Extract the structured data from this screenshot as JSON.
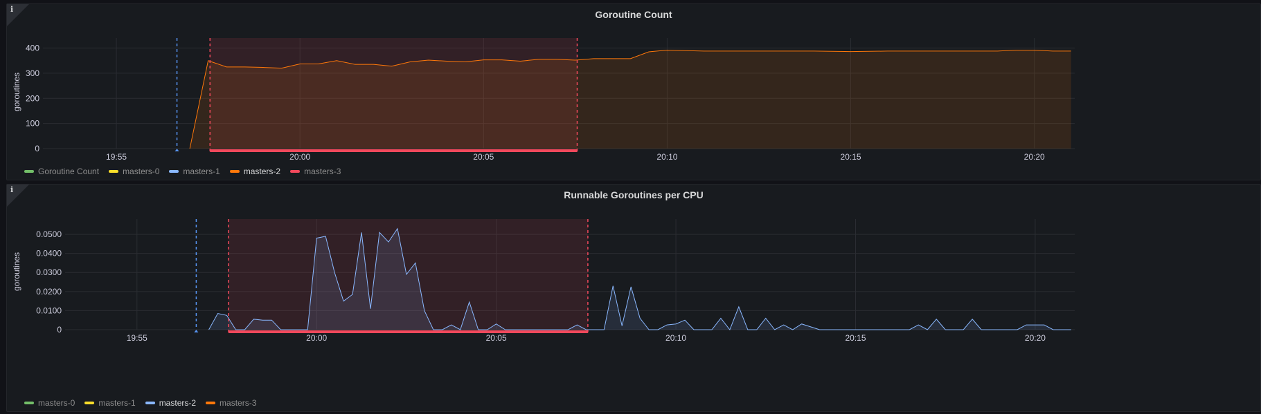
{
  "panels": [
    {
      "title": "Goroutine Count",
      "info_icon": "i",
      "ylabel": "goroutines",
      "legend": [
        {
          "label": "Goroutine Count",
          "color": "#73bf69",
          "active": false
        },
        {
          "label": "masters-0",
          "color": "#fade2a",
          "active": false
        },
        {
          "label": "masters-1",
          "color": "#8ab8ff",
          "active": false
        },
        {
          "label": "masters-2",
          "color": "#ff780a",
          "active": true
        },
        {
          "label": "masters-3",
          "color": "#f2495c",
          "active": false
        }
      ],
      "chart_data": {
        "type": "area",
        "series_color": "#ff780a",
        "x_ticks": [
          "19:55",
          "20:00",
          "20:05",
          "20:10",
          "20:15",
          "20:20"
        ],
        "y_ticks": [
          "0",
          "100",
          "200",
          "300",
          "400"
        ],
        "ylim": [
          0,
          440
        ],
        "xlim_minutes": [
          1193.0,
          1221.1
        ],
        "annotation_deploy_minute": 1196.65,
        "annotation_region_minutes": [
          1197.55,
          1207.55
        ],
        "series": [
          {
            "name": "masters-2",
            "x": [
              1197.0,
              1197.5,
              1198.0,
              1198.5,
              1199.0,
              1199.5,
              1200.0,
              1200.5,
              1201.0,
              1201.5,
              1202.0,
              1202.5,
              1203.0,
              1203.5,
              1204.0,
              1204.5,
              1205.0,
              1205.5,
              1206.0,
              1206.5,
              1207.0,
              1207.5,
              1208.0,
              1208.5,
              1209.0,
              1209.5,
              1210.0,
              1211.0,
              1212.0,
              1213.0,
              1214.0,
              1215.0,
              1216.0,
              1217.0,
              1218.0,
              1219.0,
              1219.5,
              1220.0,
              1220.5,
              1221.0
            ],
            "y": [
              0,
              350,
              325,
              325,
              323,
              320,
              337,
              337,
              350,
              335,
              335,
              328,
              345,
              352,
              348,
              345,
              353,
              353,
              348,
              355,
              355,
              352,
              358,
              358,
              358,
              385,
              392,
              388,
              388,
              388,
              388,
              386,
              388,
              388,
              388,
              388,
              392,
              392,
              388,
              388
            ]
          }
        ]
      }
    },
    {
      "title": "Runnable Goroutines per CPU",
      "info_icon": "i",
      "ylabel": "goroutines",
      "legend": [
        {
          "label": "masters-0",
          "color": "#73bf69",
          "active": false
        },
        {
          "label": "masters-1",
          "color": "#fade2a",
          "active": false
        },
        {
          "label": "masters-2",
          "color": "#8ab8ff",
          "active": true
        },
        {
          "label": "masters-3",
          "color": "#ff780a",
          "active": false
        }
      ],
      "chart_data": {
        "type": "area",
        "series_color": "#8ab8ff",
        "x_ticks": [
          "19:55",
          "20:00",
          "20:05",
          "20:10",
          "20:15",
          "20:20"
        ],
        "y_ticks": [
          "0",
          "0.0100",
          "0.0200",
          "0.0300",
          "0.0400",
          "0.0500"
        ],
        "ylim": [
          0,
          0.058
        ],
        "xlim_minutes": [
          1193.0,
          1221.1
        ],
        "annotation_deploy_minute": 1196.65,
        "annotation_region_minutes": [
          1197.55,
          1207.55
        ],
        "series": [
          {
            "name": "masters-2",
            "x": [
              1197.0,
              1197.25,
              1197.5,
              1197.75,
              1198.0,
              1198.25,
              1198.5,
              1198.75,
              1199.0,
              1199.25,
              1199.5,
              1199.75,
              1200.0,
              1200.25,
              1200.5,
              1200.75,
              1201.0,
              1201.25,
              1201.5,
              1201.75,
              1202.0,
              1202.25,
              1202.5,
              1202.75,
              1203.0,
              1203.25,
              1203.5,
              1203.75,
              1204.0,
              1204.25,
              1204.5,
              1204.75,
              1205.0,
              1205.25,
              1205.5,
              1206.0,
              1206.5,
              1207.0,
              1207.25,
              1207.5,
              1207.75,
              1208.0,
              1208.25,
              1208.5,
              1208.75,
              1209.0,
              1209.25,
              1209.5,
              1209.75,
              1210.0,
              1210.25,
              1210.5,
              1210.75,
              1211.0,
              1211.25,
              1211.5,
              1211.75,
              1212.0,
              1212.25,
              1212.5,
              1212.75,
              1213.0,
              1213.25,
              1213.5,
              1214.0,
              1214.5,
              1215.0,
              1215.5,
              1216.0,
              1216.5,
              1216.75,
              1217.0,
              1217.25,
              1217.5,
              1217.75,
              1218.0,
              1218.25,
              1218.5,
              1218.75,
              1219.0,
              1219.25,
              1219.5,
              1219.75,
              1220.0,
              1220.25,
              1220.5,
              1220.75,
              1221.0
            ],
            "y": [
              0,
              0.0085,
              0.0075,
              0,
              0,
              0.0055,
              0.005,
              0.005,
              0,
              0,
              0,
              0,
              0.048,
              0.049,
              0.03,
              0.015,
              0.0185,
              0.051,
              0.011,
              0.051,
              0.046,
              0.053,
              0.029,
              0.035,
              0.01,
              0,
              0,
              0.0025,
              0,
              0.0145,
              0,
              0,
              0.003,
              0,
              0,
              0,
              0,
              0,
              0.0025,
              0,
              0,
              0,
              0.023,
              0.002,
              0.0225,
              0.006,
              0,
              0,
              0.0025,
              0.003,
              0.005,
              0,
              0,
              0,
              0.006,
              0,
              0.012,
              0,
              0,
              0.006,
              0,
              0.0025,
              0,
              0.003,
              0,
              0,
              0,
              0,
              0,
              0,
              0.0025,
              0,
              0.0055,
              0,
              0,
              0,
              0.0055,
              0,
              0,
              0,
              0,
              0,
              0.0025,
              0.0025,
              0.0025,
              0,
              0,
              0
            ]
          }
        ]
      }
    }
  ]
}
